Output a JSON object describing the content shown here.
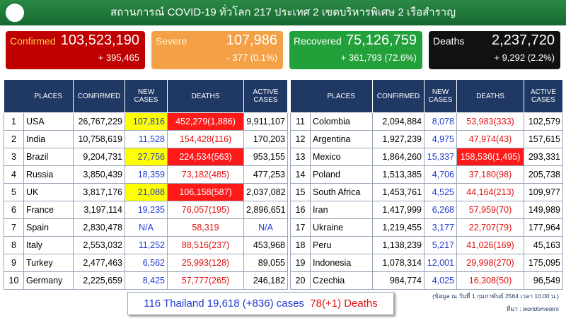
{
  "header": {
    "title": "สถานการณ์ COVID-19 ทั่วโลก 217 ประเทศ 2 เขตบริหารพิเศษ 2 เรือสำราญ"
  },
  "cards": [
    {
      "label": "Confirmed",
      "value": "103,523,190",
      "change": "+ 395,465"
    },
    {
      "label": "Severe",
      "value": "107,986",
      "change": "- 377 (0.1%)"
    },
    {
      "label": "Recovered",
      "value": "75,126,759",
      "change": "+ 361,793 (72.6%)"
    },
    {
      "label": "Deaths",
      "value": "2,237,720",
      "change": "+ 9,292 (2.2%)"
    }
  ],
  "tables": [
    {
      "headers": [
        "PLACES",
        "CONFIRMED",
        "NEW CASES",
        "DEATHS",
        "ACTIVE CASES"
      ],
      "rows": [
        [
          "1",
          "USA",
          "26,767,229",
          "107,816",
          "452,279(1,886)",
          "9,911,107"
        ],
        [
          "2",
          "India",
          "10,758,619",
          "11,528",
          "154,428(116)",
          "170,203"
        ],
        [
          "3",
          "Brazil",
          "9,204,731",
          "27,756",
          "224,534(563)",
          "953,155"
        ],
        [
          "4",
          "Russia",
          "3,850,439",
          "18,359",
          "73,182(485)",
          "477,253"
        ],
        [
          "5",
          "UK",
          "3,817,176",
          "21,088",
          "106,158(587)",
          "2,037,082"
        ],
        [
          "6",
          "France",
          "3,197,114",
          "19,235",
          "76,057(195)",
          "2,896,651"
        ],
        [
          "7",
          "Spain",
          "2,830,478",
          "N/A",
          "58,319",
          "N/A"
        ],
        [
          "8",
          "Italy",
          "2,553,032",
          "11,252",
          "88,516(237)",
          "453,968"
        ],
        [
          "9",
          "Turkey",
          "2,477,463",
          "6,562",
          "25,993(128)",
          "89,055"
        ],
        [
          "10",
          "Germany",
          "2,225,659",
          "8,425",
          "57,777(265)",
          "246,182"
        ]
      ]
    },
    {
      "headers": [
        "PLACES",
        "CONFIRMED",
        "NEW CASES",
        "DEATHS",
        "ACTIVE CASES"
      ],
      "rows": [
        [
          "11",
          "Colombia",
          "2,094,884",
          "8,078",
          "53,983(333)",
          "102,579"
        ],
        [
          "12",
          "Argentina",
          "1,927,239",
          "4,975",
          "47,974(43)",
          "157,615"
        ],
        [
          "13",
          "Mexico",
          "1,864,260",
          "15,337",
          "158,536(1,495)",
          "293,331"
        ],
        [
          "14",
          "Poland",
          "1,513,385",
          "4,706",
          "37,180(98)",
          "205,738"
        ],
        [
          "15",
          "South Africa",
          "1,453,761",
          "4,525",
          "44,164(213)",
          "109,977"
        ],
        [
          "16",
          "Iran",
          "1,417,999",
          "6,268",
          "57,959(70)",
          "149,989"
        ],
        [
          "17",
          "Ukraine",
          "1,219,455",
          "3,177",
          "22,707(79)",
          "177,964"
        ],
        [
          "18",
          "Peru",
          "1,138,239",
          "5,217",
          "41,026(169)",
          "45,163"
        ],
        [
          "19",
          "Indonesia",
          "1,078,314",
          "12,001",
          "29,998(270)",
          "175,095"
        ],
        [
          "20",
          "Czechia",
          "984,774",
          "4,025",
          "16,308(50)",
          "96,549"
        ]
      ]
    }
  ],
  "thailand": {
    "cases": "116 Thailand 19,618 (+836) cases",
    "deaths": "78(+1) Deaths"
  },
  "note": {
    "date": "(ข้อมูล ณ วันที่ 1 กุมภาพันธ์ 2564 เวลา 10.00 น.)",
    "source_label": "ที่มา :",
    "source": "worldometers"
  }
}
